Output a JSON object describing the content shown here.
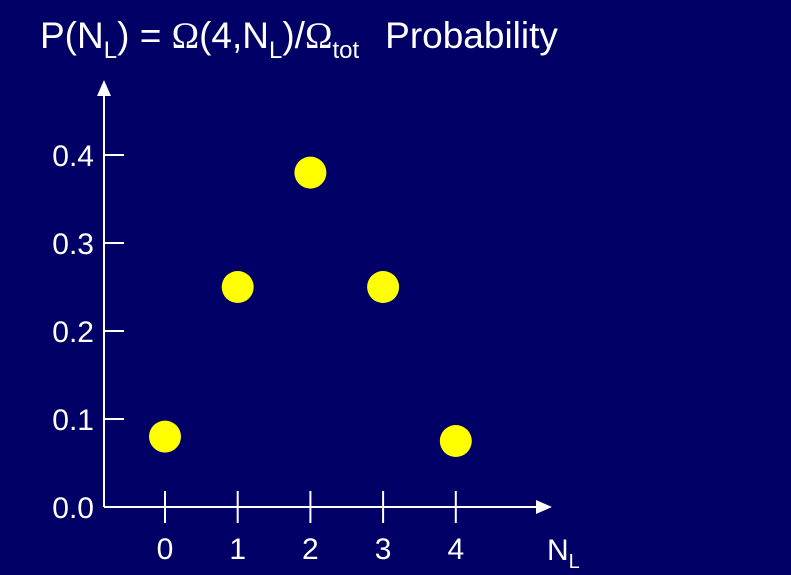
{
  "title": {
    "formula_p": "P(N",
    "formula_p_sub": "L",
    "formula_mid": ") = ",
    "omega_symbol": "Ω",
    "formula_args_open": "(4,N",
    "formula_args_sub": "L",
    "formula_args_close": ")/",
    "omega_symbol_2": "Ω",
    "formula_tot_sub": "tot",
    "label": "Probability"
  },
  "colors": {
    "background": "#000066",
    "axis": "#ffffff",
    "points": "#ffff00"
  },
  "chart_data": {
    "type": "scatter",
    "x": [
      0,
      1,
      2,
      3,
      4
    ],
    "y": [
      0.08,
      0.25,
      0.38,
      0.25,
      0.075
    ],
    "xlabel": "N",
    "xlabel_sub": "L",
    "x_ticks": [
      "0",
      "1",
      "2",
      "3",
      "4"
    ],
    "y_ticks": [
      "0.0",
      "0.1",
      "0.2",
      "0.3",
      "0.4"
    ],
    "xlim": [
      -0.8,
      5
    ],
    "ylim": [
      0,
      0.48
    ],
    "grid": false,
    "legend": "none"
  }
}
